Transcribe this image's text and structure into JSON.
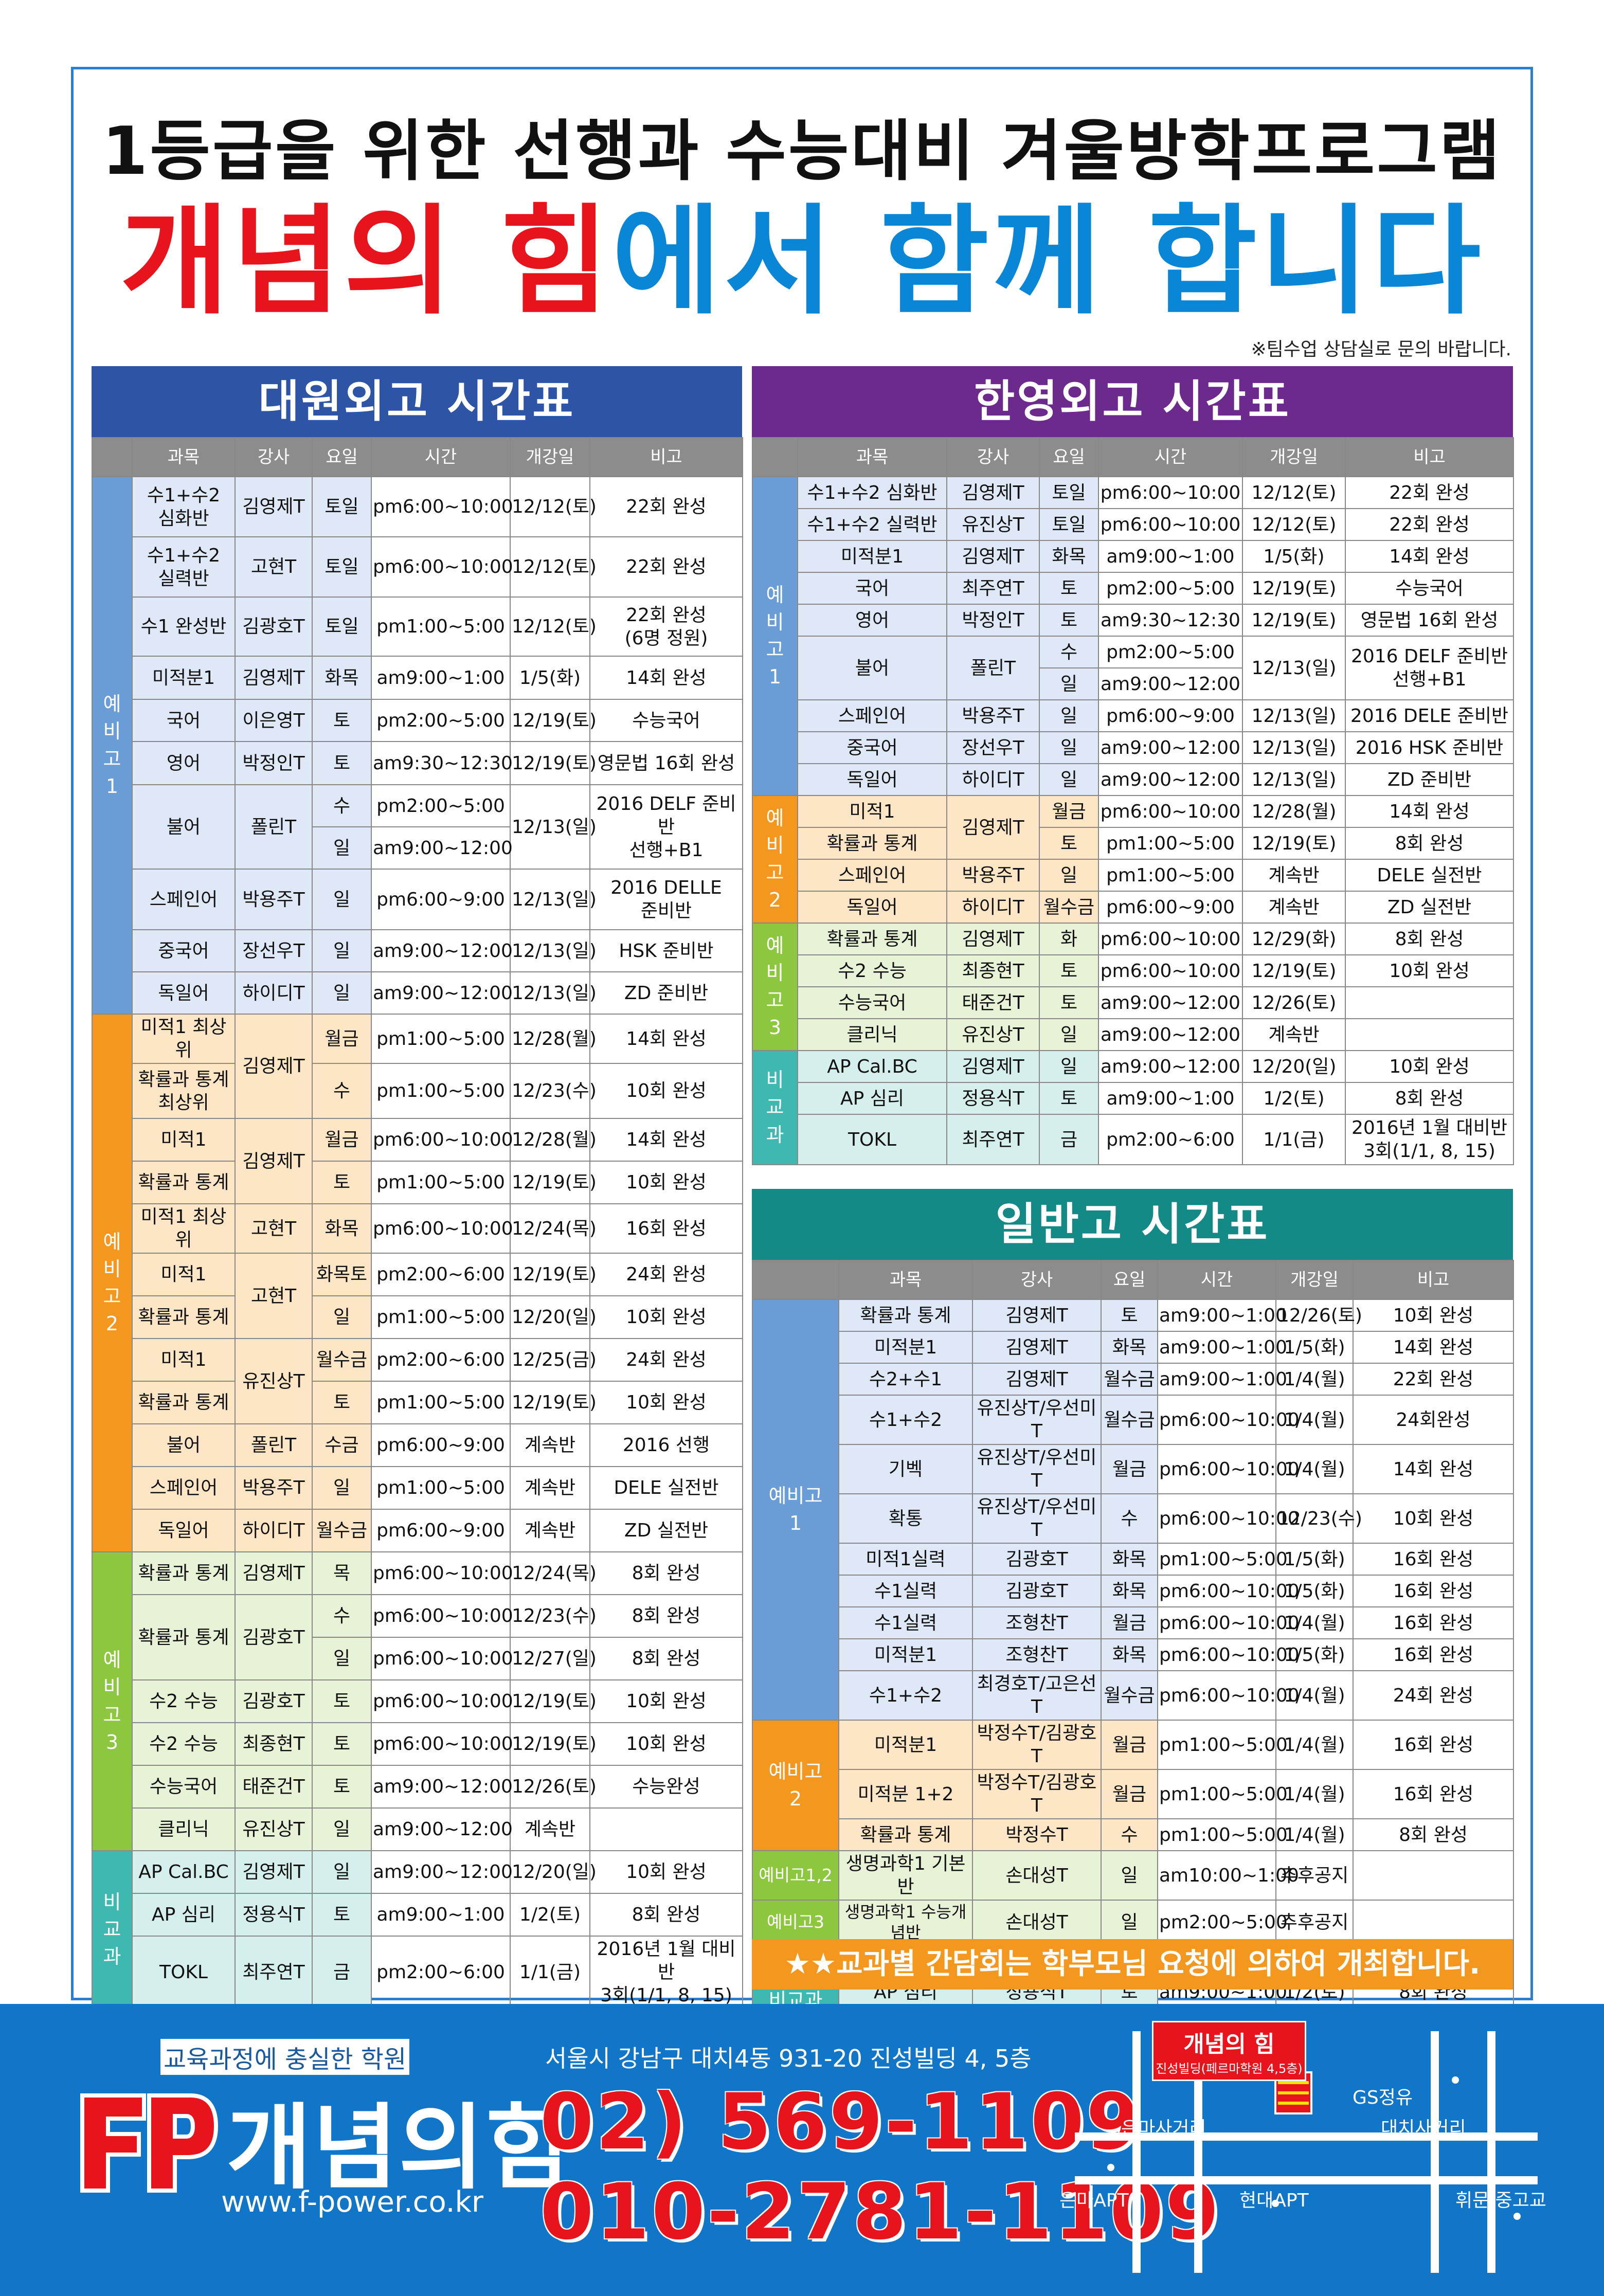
{
  "header": {
    "title1": "1등급을 위한 선행과 수능대비 겨울방학프로그램",
    "title2_red": "개념의 힘",
    "title2_blue": "에서 함께 합니다",
    "note": "※팀수업 상담실로 문의 바랍니다."
  },
  "colors": {
    "daewon": "#2e55a5",
    "hanyoung": "#6b2a8c",
    "general": "#138a86",
    "accent_red": "#e8141d",
    "accent_blue": "#0a86d6"
  },
  "daewon": {
    "title": "대원외고 시간표",
    "headers": [
      "과목",
      "강사",
      "요일",
      "시간",
      "개강일",
      "비고"
    ],
    "groups": [
      "예비고1",
      "예비고2",
      "예비고3",
      "비교과"
    ]
  },
  "hanyoung": {
    "title": "한영외고 시간표",
    "headers": [
      "과목",
      "강사",
      "요일",
      "시간",
      "개강일",
      "비고"
    ],
    "groups": [
      "예비고1",
      "예비고2",
      "예비고3",
      "비교과"
    ]
  },
  "general": {
    "title": "일반고 시간표",
    "headers": [
      "과목",
      "강사",
      "요일",
      "시간",
      "개강일",
      "비고"
    ],
    "groups": [
      "예비고1",
      "예비고2",
      "예비고1,2",
      "예비고3",
      "비교과"
    ]
  },
  "bottom_note": "★★교과별 간담회는 학부모님 요청에 의하여 개최합니다.",
  "footer": {
    "slogan": "교육과정에 충실한 학원",
    "brand": "개념의힘",
    "logo_letters": "FP",
    "url": "www.f-power.co.kr",
    "address": "서울시 강남구 대치4동 931-20 진성빌딩 4, 5층",
    "phone1": "02) 569-1109",
    "phone2": "010-2781-1109"
  },
  "map": {
    "brand": "개념의 힘",
    "building": "진성빌딩(페르마학원 4,5층)",
    "labels": [
      "GS정유",
      "은마사거리",
      "대치사거리",
      "은마APT",
      "현대APT",
      "휘문.중고교"
    ]
  }
}
